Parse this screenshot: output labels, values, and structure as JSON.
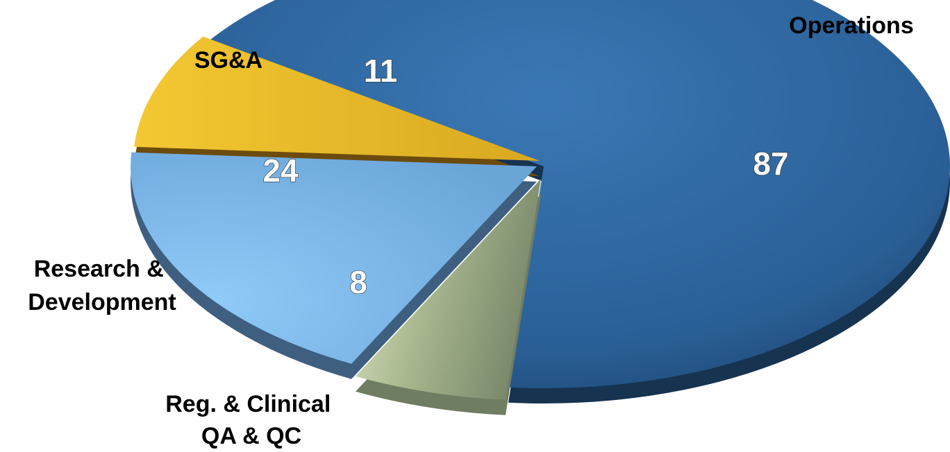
{
  "chart_data": {
    "type": "pie",
    "style": "3d-exploded",
    "categories": [
      "Operations",
      "SG&A",
      "Research & Development",
      "Reg. & Clinical QA & QC"
    ],
    "values": [
      87,
      11,
      24,
      8
    ],
    "data_labels": [
      "87",
      "11",
      "24",
      "8"
    ],
    "label_lines": [
      [
        "Operations"
      ],
      [
        "SG&A"
      ],
      [
        "Research &",
        "Development"
      ],
      [
        "Reg. & Clinical",
        "QA & QC"
      ]
    ],
    "colors": [
      "#2e6aa3",
      "#e8b92c",
      "#7fb6e6",
      "#a9b98f"
    ],
    "side_colors": [
      "#163350",
      "#6b4c0e",
      "#3f5f80",
      "#6f7d62"
    ],
    "legend": "none"
  }
}
